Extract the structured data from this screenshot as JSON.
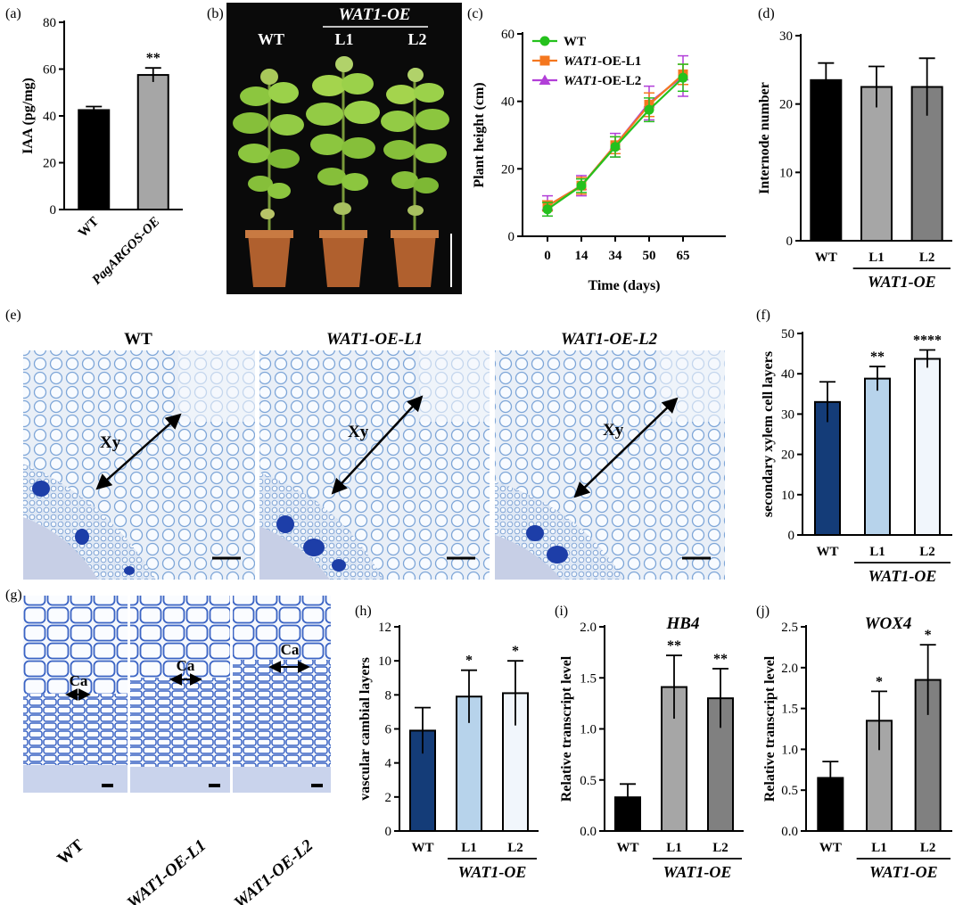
{
  "panels": {
    "a": {
      "tag": "(a)"
    },
    "b": {
      "tag": "(b)"
    },
    "c": {
      "tag": "(c)"
    },
    "d": {
      "tag": "(d)"
    },
    "e": {
      "tag": "(e)"
    },
    "f": {
      "tag": "(f)"
    },
    "g": {
      "tag": "(g)"
    },
    "h": {
      "tag": "(h)"
    },
    "i": {
      "tag": "(i)"
    },
    "j": {
      "tag": "(j)"
    }
  },
  "photo_b": {
    "group_label": "WAT1-OE",
    "plants": [
      "WT",
      "L1",
      "L2"
    ]
  },
  "micro_e": {
    "titles": [
      "WT",
      "WAT1-OE-L1",
      "WAT1-OE-L2"
    ],
    "arrow_label": "Xy"
  },
  "micro_g": {
    "labels": [
      "WT",
      "WAT1-OE-L1",
      "WAT1-OE-L2"
    ],
    "arrow_label": "Ca"
  },
  "colors": {
    "black": "#000000",
    "gray_light": "#a6a6a6",
    "gray_mid": "#808080",
    "navy": "#143c78",
    "light_blue": "#b7d3eb",
    "pale_blue": "#f1f6fc",
    "wt_green": "#25c11d",
    "l1_orange": "#f4771f",
    "l2_purple": "#b23fd8",
    "stain_blue": "#5a84c6",
    "photo_bg": "#0a0a0a",
    "leaf_green": "#8cc63f"
  },
  "chart_data": [
    {
      "id": "a",
      "type": "bar",
      "categories": [
        "WT",
        "PagARGOS-OE"
      ],
      "values": [
        42.5,
        57.5
      ],
      "errors": [
        1.5,
        3.0
      ],
      "significance": [
        "",
        "**"
      ],
      "colors": [
        "#000000",
        "#a6a6a6"
      ],
      "ylabel": "IAA (pg/mg)",
      "ylim": [
        0,
        80
      ],
      "yticks": [
        0,
        20,
        40,
        60,
        80
      ],
      "group_label": ""
    },
    {
      "id": "c",
      "type": "line",
      "x": [
        "0",
        "14",
        "34",
        "50",
        "65"
      ],
      "xlabel": "Time (days)",
      "ylabel": "Plant height (cm)",
      "ylim": [
        0,
        60
      ],
      "yticks": [
        0,
        20,
        40,
        60
      ],
      "legend_position": "top-left",
      "series": [
        {
          "name": "WT",
          "values": [
            8.0,
            15.0,
            26.5,
            37.5,
            47.0
          ],
          "errors": [
            2.0,
            2.0,
            3.0,
            3.5,
            4.0
          ],
          "color": "#25c11d",
          "marker": "circle"
        },
        {
          "name": "WAT1-OE-L1",
          "values": [
            9.0,
            15.0,
            27.0,
            39.0,
            48.0
          ],
          "errors": [
            1.5,
            2.5,
            2.5,
            3.5,
            3.0
          ],
          "color": "#f4771f",
          "marker": "square"
        },
        {
          "name": "WAT1-OE-L2",
          "values": [
            9.0,
            15.0,
            27.0,
            39.5,
            47.5
          ],
          "errors": [
            3.0,
            3.0,
            3.5,
            5.0,
            6.0
          ],
          "color": "#b23fd8",
          "marker": "triangle"
        }
      ]
    },
    {
      "id": "d",
      "type": "bar",
      "categories": [
        "WT",
        "L1",
        "L2"
      ],
      "values": [
        23.5,
        22.5,
        22.5
      ],
      "errors": [
        2.5,
        3.0,
        4.2
      ],
      "significance": [
        "",
        "",
        ""
      ],
      "colors": [
        "#000000",
        "#a6a6a6",
        "#808080"
      ],
      "ylabel": "Internode number",
      "ylim": [
        0,
        30
      ],
      "yticks": [
        0,
        10,
        20,
        30
      ],
      "group_label": "WAT1-OE"
    },
    {
      "id": "f",
      "type": "bar",
      "categories": [
        "WT",
        "L1",
        "L2"
      ],
      "values": [
        33.0,
        38.8,
        43.7
      ],
      "errors": [
        5.0,
        3.0,
        2.2
      ],
      "significance": [
        "",
        "**",
        "****"
      ],
      "colors": [
        "#143c78",
        "#b7d3eb",
        "#f1f6fc"
      ],
      "ylabel": "secondary xylem cell layers",
      "ylim": [
        0,
        50
      ],
      "yticks": [
        0,
        10,
        20,
        30,
        40,
        50
      ],
      "group_label": "WAT1-OE"
    },
    {
      "id": "h",
      "type": "bar",
      "categories": [
        "WT",
        "L1",
        "L2"
      ],
      "values": [
        5.9,
        7.9,
        8.1
      ],
      "errors": [
        1.35,
        1.55,
        1.9
      ],
      "significance": [
        "",
        "*",
        "*"
      ],
      "colors": [
        "#143c78",
        "#b7d3eb",
        "#f1f6fc"
      ],
      "ylabel": "vascular cambial layers",
      "ylim": [
        0,
        12
      ],
      "yticks": [
        0,
        2,
        4,
        6,
        8,
        10,
        12
      ],
      "group_label": "WAT1-OE"
    },
    {
      "id": "i",
      "type": "bar",
      "title": "HB4",
      "categories": [
        "WT",
        "L1",
        "L2"
      ],
      "values": [
        0.33,
        1.41,
        1.3
      ],
      "errors": [
        0.13,
        0.31,
        0.29
      ],
      "significance": [
        "",
        "**",
        "**"
      ],
      "colors": [
        "#000000",
        "#a6a6a6",
        "#808080"
      ],
      "ylabel": "Relative transcript level",
      "ylim": [
        0,
        2.0
      ],
      "yticks": [
        "0.0",
        "0.5",
        "1.0",
        "1.5",
        "2.0"
      ],
      "group_label": "WAT1-OE"
    },
    {
      "id": "j",
      "type": "bar",
      "title": "WOX4",
      "categories": [
        "WT",
        "L1",
        "L2"
      ],
      "values": [
        0.65,
        1.35,
        1.85
      ],
      "errors": [
        0.2,
        0.36,
        0.43
      ],
      "significance": [
        "",
        "*",
        "*"
      ],
      "colors": [
        "#000000",
        "#a6a6a6",
        "#808080"
      ],
      "ylabel": "Relative transcript level",
      "ylim": [
        0,
        2.5
      ],
      "yticks": [
        "0.0",
        "0.5",
        "1.0",
        "1.5",
        "2.0",
        "2.5"
      ],
      "group_label": "WAT1-OE"
    }
  ]
}
